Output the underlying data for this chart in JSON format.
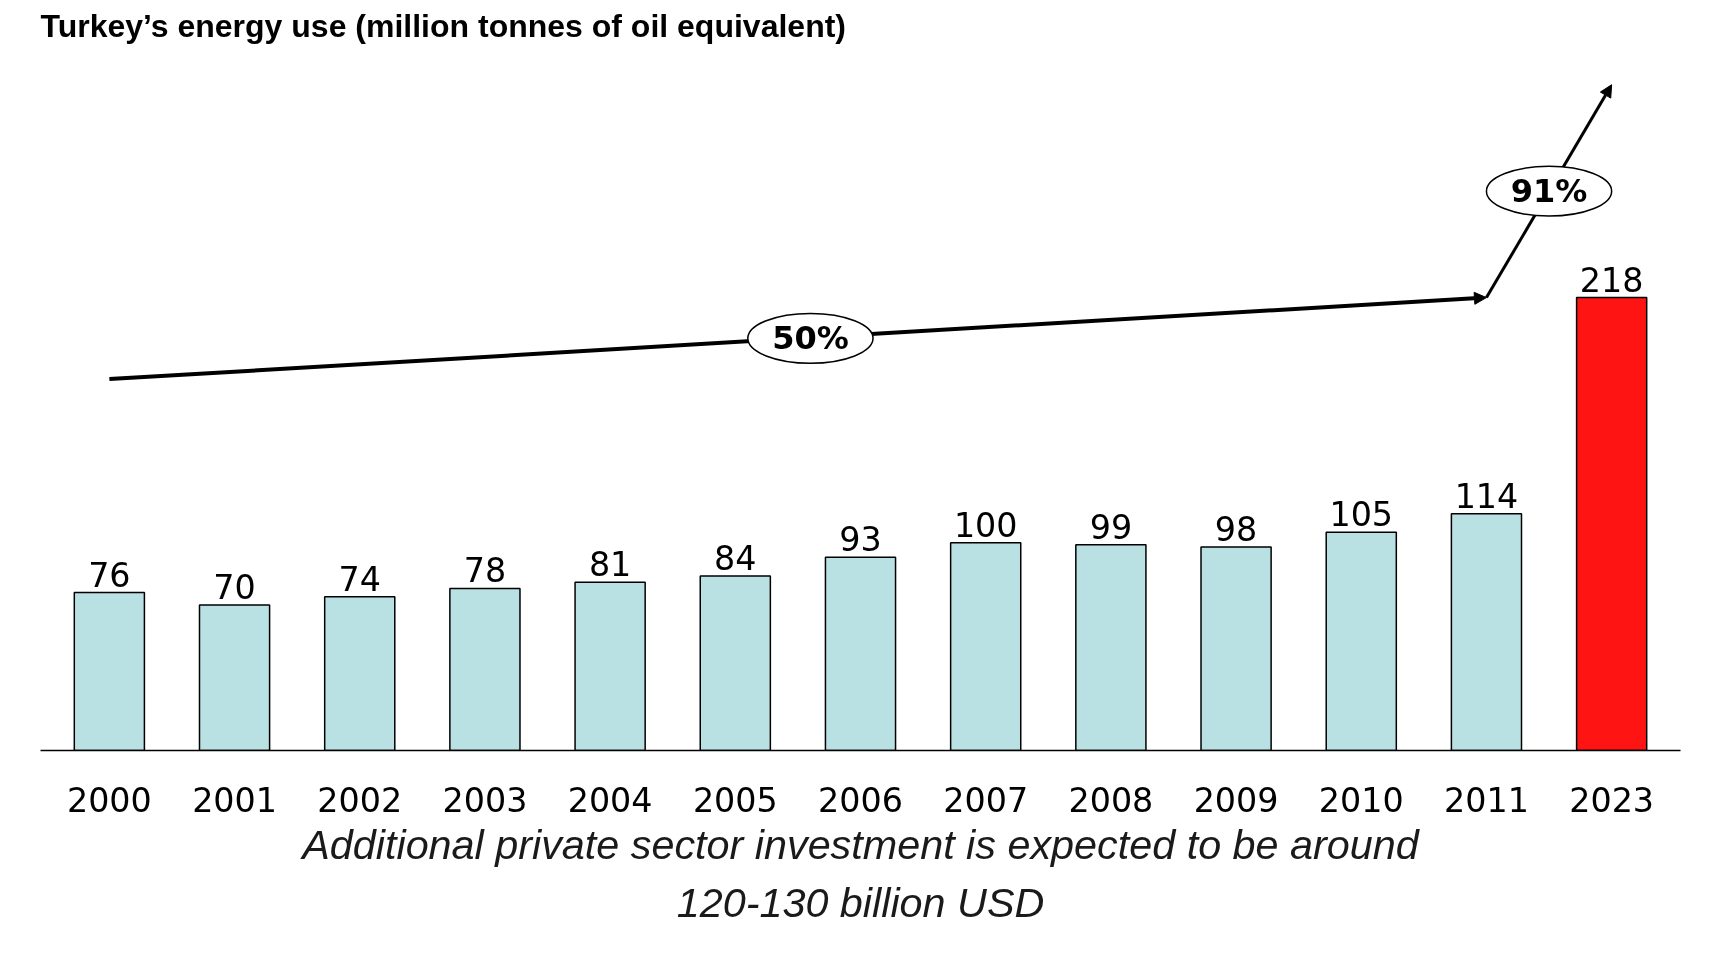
{
  "chart_data": {
    "type": "bar",
    "title": "Turkey’s energy use (million tonnes of oil equivalent)",
    "categories": [
      "2000",
      "2001",
      "2002",
      "2003",
      "2004",
      "2005",
      "2006",
      "2007",
      "2008",
      "2009",
      "2010",
      "2011",
      "2023"
    ],
    "values": [
      76,
      70,
      74,
      78,
      81,
      84,
      93,
      100,
      99,
      98,
      105,
      114,
      218
    ],
    "colors": [
      "#b9e0e2",
      "#b9e0e2",
      "#b9e0e2",
      "#b9e0e2",
      "#b9e0e2",
      "#b9e0e2",
      "#b9e0e2",
      "#b9e0e2",
      "#b9e0e2",
      "#b9e0e2",
      "#b9e0e2",
      "#b9e0e2",
      "#ff1414"
    ],
    "data_labels": true,
    "grid": false,
    "annotations": [
      "50%",
      "91%",
      "Additional private sector investment is expected to be around\n120-130 billion USD"
    ]
  }
}
